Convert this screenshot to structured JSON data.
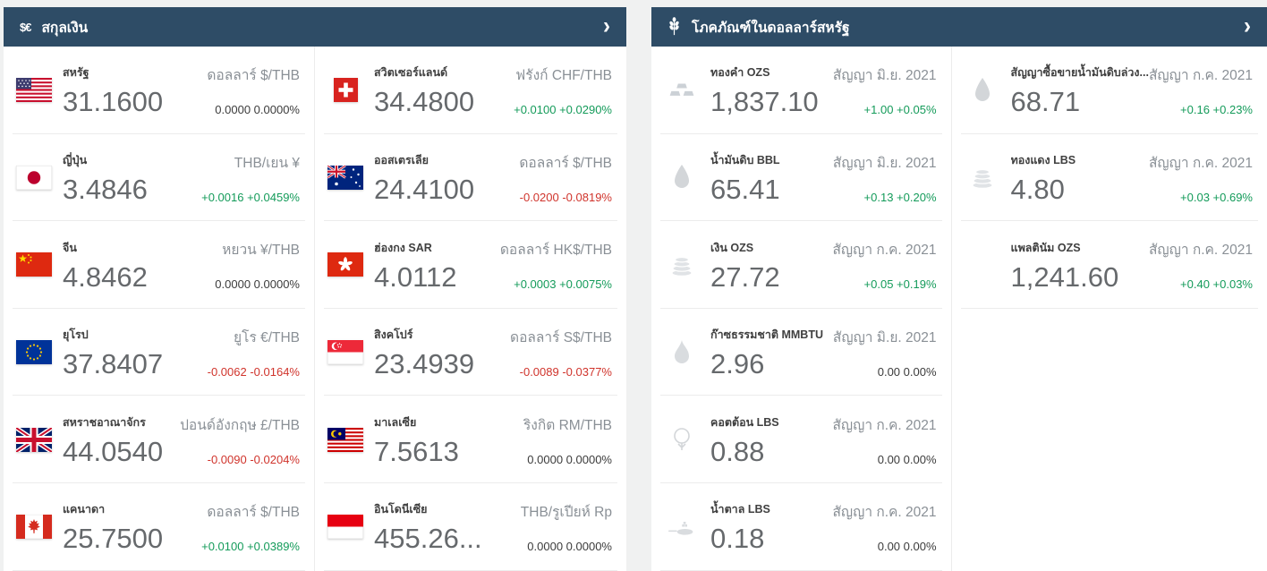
{
  "colors": {
    "header_bg": "#2e4c66",
    "positive": "#149b5a",
    "negative": "#d0342c",
    "neutral": "#3b3b3b"
  },
  "currencies_panel": {
    "title": "สกุลเงิน",
    "header_icon_text": "$€",
    "chevron": "›",
    "items": [
      {
        "flag": "us",
        "name": "สหรัฐ",
        "price": "31.1600",
        "unit": "ดอลลาร์ $/THB",
        "change": "0.0000 0.0000%"
      },
      {
        "flag": "ch",
        "name": "สวิตเซอร์แลนด์",
        "price": "34.4800",
        "unit": "ฟรังก์ CHF/THB",
        "change": "+0.0100 +0.0290%"
      },
      {
        "flag": "jp",
        "name": "ญี่ปุ่น",
        "price": "3.4846",
        "unit": "THB/เยน ¥",
        "change": "+0.0016 +0.0459%"
      },
      {
        "flag": "au",
        "name": "ออสเตรเลีย",
        "price": "24.4100",
        "unit": "ดอลลาร์ $/THB",
        "change": "-0.0200 -0.0819%"
      },
      {
        "flag": "cn",
        "name": "จีน",
        "price": "4.8462",
        "unit": "หยวน ¥/THB",
        "change": "0.0000 0.0000%"
      },
      {
        "flag": "hk",
        "name": "ฮ่องกง SAR",
        "price": "4.0112",
        "unit": "ดอลลาร์ HK$/THB",
        "change": "+0.0003 +0.0075%"
      },
      {
        "flag": "eu",
        "name": "ยุโรป",
        "price": "37.8407",
        "unit": "ยูโร €/THB",
        "change": "-0.0062 -0.0164%"
      },
      {
        "flag": "sg",
        "name": "สิงคโปร์",
        "price": "23.4939",
        "unit": "ดอลลาร์ S$/THB",
        "change": "-0.0089 -0.0377%"
      },
      {
        "flag": "gb",
        "name": "สหราชอาณาจักร",
        "price": "44.0540",
        "unit": "ปอนด์อังกฤษ £/THB",
        "change": "-0.0090 -0.0204%"
      },
      {
        "flag": "my",
        "name": "มาเลเซีย",
        "price": "7.5613",
        "unit": "ริงกิต RM/THB",
        "change": "0.0000 0.0000%"
      },
      {
        "flag": "ca",
        "name": "แคนาดา",
        "price": "25.7500",
        "unit": "ดอลลาร์ $/THB",
        "change": "+0.0100 +0.0389%"
      },
      {
        "flag": "id",
        "name": "อินโดนีเซีย",
        "price": "455.26...",
        "unit": "THB/รูเปียห์ Rp",
        "change": "0.0000 0.0000%"
      }
    ]
  },
  "commodities_panel": {
    "title": "โภคภัณฑ์ในดอลลาร์สหรัฐ",
    "header_icon": "wheat-icon",
    "chevron": "›",
    "items": [
      {
        "icon": "gold-bars",
        "name": "ทองคำ OZS",
        "price": "1,837.10",
        "unit": "สัญญา มิ.ย. 2021",
        "change": "+1.00 +0.05%"
      },
      {
        "icon": "oil-drop",
        "name": "สัญญาซื้อขายน้ำมันดิบล่วง...",
        "price": "68.71",
        "unit": "สัญญา ก.ค. 2021",
        "change": "+0.16 +0.23%"
      },
      {
        "icon": "oil-drop",
        "name": "น้ำมันดิบ BBL",
        "price": "65.41",
        "unit": "สัญญา มิ.ย. 2021",
        "change": "+0.13 +0.20%"
      },
      {
        "icon": "coins-stack",
        "name": "ทองแดง LBS",
        "price": "4.80",
        "unit": "สัญญา ก.ค. 2021",
        "change": "+0.03 +0.69%"
      },
      {
        "icon": "coins-stack",
        "name": "เงิน OZS",
        "price": "27.72",
        "unit": "สัญญา ก.ค. 2021",
        "change": "+0.05 +0.19%"
      },
      {
        "icon": "",
        "name": "แพลตินัม OZS",
        "price": "1,241.60",
        "unit": "สัญญา ก.ค. 2021",
        "change": "+0.40 +0.03%"
      },
      {
        "icon": "flame",
        "name": "ก๊าซธรรมชาติ MMBTU",
        "price": "2.96",
        "unit": "สัญญา มิ.ย. 2021",
        "change": "0.00 0.00%"
      },
      {
        "icon": "cotton",
        "name": "คอตต้อน LBS",
        "price": "0.88",
        "unit": "สัญญา ก.ค. 2021",
        "change": "0.00 0.00%"
      },
      {
        "icon": "sugar-spoon",
        "name": "น้ำตาล LBS",
        "price": "0.18",
        "unit": "สัญญา ก.ค. 2021",
        "change": "0.00 0.00%"
      }
    ]
  }
}
